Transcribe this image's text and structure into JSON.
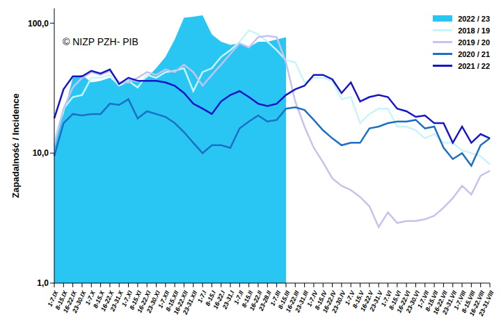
{
  "chart_data": {
    "type": "line",
    "ylabel": "Zapadalność / Incidence",
    "annotation": "© NIZP PZH- PIB",
    "log": "y",
    "grid": false,
    "legend": "upper right",
    "ylim": [
      1,
      130
    ],
    "yticks": [
      {
        "value": 1,
        "label": "1,0"
      },
      {
        "value": 10,
        "label": "10,0"
      },
      {
        "value": 100,
        "label": "100,0"
      }
    ],
    "categories": [
      "1-7.IX",
      "8-15.IX",
      "16-22.IX",
      "23-30.IX",
      "1-7.X",
      "8-15.X",
      "16-22.X",
      "23-31.X",
      "1-7.XI",
      "8-15.XI",
      "16-22.XI",
      "23-30.XI",
      "1-7.XII",
      "8-15.XII",
      "16-22.XII",
      "23-31.XII",
      "1-7.I",
      "8-15.I",
      "16-22.I",
      "23-31.I",
      "1-7.II",
      "8-15.II",
      "16-22.II",
      "23-28.II",
      "1-7.III",
      "8-15.III",
      "16-22.III",
      "23-31.III",
      "1-7.IV",
      "8-15.IV",
      "16-22.IV",
      "23-30.IV",
      "1-7.V",
      "8-15.V",
      "16-22.V",
      "23-31.V",
      "1-7.VI",
      "8-15.VI",
      "16-22.VI",
      "23-30.VI",
      "1-7.VII",
      "8-15.VII",
      "16-22.VII",
      "23-31.VII",
      "1-7.VIII",
      "8-15.VIII",
      "16-22.VIII",
      "23-31.VIII"
    ],
    "series": [
      {
        "name": "2022 / 23",
        "type": "area",
        "color": "#29c6f4",
        "values": [
          13,
          20,
          38,
          40,
          35,
          36,
          38,
          33,
          37,
          35,
          38,
          45,
          55,
          75,
          110,
          112,
          115,
          82,
          72,
          68,
          70,
          65,
          72,
          72,
          75,
          78,
          null,
          null,
          null,
          null,
          null,
          null,
          null,
          null,
          null,
          null,
          null,
          null,
          null,
          null,
          null,
          null,
          null,
          null,
          null,
          null,
          null,
          null
        ]
      },
      {
        "name": "2018 / 19",
        "type": "line",
        "color": "#c8f4fb",
        "values": [
          12.5,
          22,
          27,
          28,
          38,
          38,
          40,
          33,
          36,
          32,
          40,
          38,
          42,
          43,
          45,
          30,
          42,
          45,
          55,
          62,
          72,
          88,
          82,
          72,
          62,
          52,
          50,
          35,
          38,
          38,
          36,
          26,
          27,
          17,
          20,
          22,
          22,
          16,
          16,
          15,
          13,
          14,
          12,
          12,
          10.5,
          10,
          9.5,
          8.2
        ]
      },
      {
        "name": "2019 / 20",
        "type": "line",
        "color": "#c5c2ee",
        "values": [
          11.5,
          22,
          32,
          38,
          42,
          40,
          43,
          35,
          35,
          38,
          42,
          40,
          44,
          42,
          48,
          42,
          33,
          40,
          48,
          58,
          70,
          65,
          78,
          80,
          78,
          50,
          25,
          16,
          11,
          8.5,
          6.4,
          5.6,
          5.2,
          4.6,
          3.9,
          2.7,
          3.5,
          2.9,
          3,
          3,
          3.1,
          3.3,
          3.8,
          4.5,
          5.6,
          4.8,
          6.7,
          7.3
        ]
      },
      {
        "name": "2020 / 21",
        "type": "line",
        "color": "#1b6fc4",
        "values": [
          9.5,
          17,
          20,
          19.5,
          20,
          20,
          24,
          23.5,
          26,
          18.5,
          21,
          20,
          19,
          17,
          14.5,
          12,
          10,
          11.5,
          11.5,
          11,
          15.5,
          17.5,
          19.5,
          17.5,
          18,
          22,
          22.5,
          21.5,
          18,
          15,
          13,
          11.5,
          12,
          12,
          15.5,
          16,
          17,
          17.5,
          17.5,
          18,
          15.5,
          16,
          11,
          9,
          10,
          8,
          11.5,
          13
        ]
      },
      {
        "name": "2021 / 22",
        "type": "line",
        "color": "#1616c8",
        "values": [
          18.5,
          31,
          39,
          39,
          43,
          41,
          44,
          34,
          38,
          36,
          36,
          36,
          35,
          33,
          29,
          24,
          22,
          20,
          25,
          28,
          30,
          27,
          24,
          23,
          24,
          28,
          31,
          33,
          40,
          40,
          37,
          29,
          35,
          25,
          27,
          28,
          27,
          22,
          21,
          19,
          19.5,
          17,
          17,
          12,
          16,
          12,
          14,
          13
        ]
      }
    ]
  }
}
